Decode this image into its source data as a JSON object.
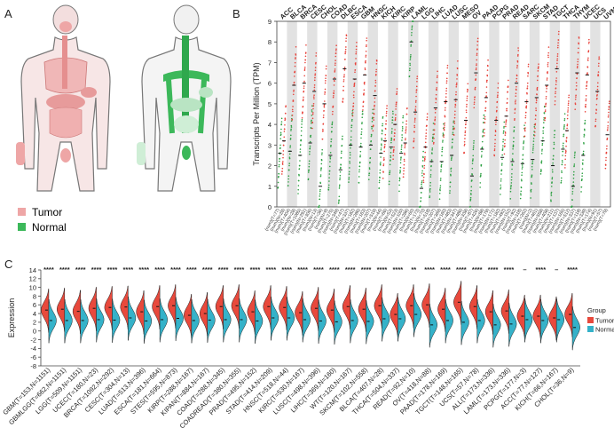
{
  "figure": {
    "panel_labels": [
      "A",
      "B",
      "C"
    ],
    "colors": {
      "tumor": "#e8493c",
      "normal": "#35b2c9",
      "b_tumor": "#e8423a",
      "b_normal": "#2ea043",
      "b_band": "#e2e2e2",
      "body_outline": "#777777",
      "tumor_organs": "#eea6a6",
      "normal_organs": "#3cb85a",
      "sig_black": "#111111",
      "label_black": "#111111"
    }
  },
  "panel_a": {
    "legend": [
      {
        "label": "Tumor",
        "color": "#eea6a6"
      },
      {
        "label": "Normal",
        "color": "#3cb85a"
      }
    ]
  },
  "chart_data": [
    {
      "panel": "B",
      "type": "scatter",
      "ylabel": "Transcripts Per Million (TPM)",
      "ylim": [
        0,
        9
      ],
      "yticks": [
        0,
        1,
        2,
        3,
        4,
        5,
        6,
        7,
        8,
        9
      ],
      "categories": [
        {
          "name": "ACC",
          "color": "red"
        },
        {
          "name": "BLCA",
          "color": "red"
        },
        {
          "name": "BRCA",
          "color": "red"
        },
        {
          "name": "CESC",
          "color": "red"
        },
        {
          "name": "CHOL",
          "color": "black"
        },
        {
          "name": "COAD",
          "color": "red"
        },
        {
          "name": "DLBC",
          "color": "red"
        },
        {
          "name": "ESCA",
          "color": "red"
        },
        {
          "name": "GBM",
          "color": "red"
        },
        {
          "name": "HNSC",
          "color": "red"
        },
        {
          "name": "KICH",
          "color": "black"
        },
        {
          "name": "KIRC",
          "color": "black"
        },
        {
          "name": "KIRP",
          "color": "black"
        },
        {
          "name": "LAML",
          "color": "green"
        },
        {
          "name": "LGG",
          "color": "black"
        },
        {
          "name": "LIHC",
          "color": "red"
        },
        {
          "name": "LUAD",
          "color": "red"
        },
        {
          "name": "LUSC",
          "color": "red"
        },
        {
          "name": "MESO",
          "color": "black"
        },
        {
          "name": "OV",
          "color": "red"
        },
        {
          "name": "PAAD",
          "color": "red"
        },
        {
          "name": "PCPG",
          "color": "black"
        },
        {
          "name": "PRAD",
          "color": "red"
        },
        {
          "name": "READ",
          "color": "red"
        },
        {
          "name": "SARC",
          "color": "black"
        },
        {
          "name": "SKCM",
          "color": "red"
        },
        {
          "name": "STAD",
          "color": "red"
        },
        {
          "name": "TGCT",
          "color": "red"
        },
        {
          "name": "THCA",
          "color": "black"
        },
        {
          "name": "THYM",
          "color": "red"
        },
        {
          "name": "UCEC",
          "color": "red"
        },
        {
          "name": "UCS",
          "color": "red"
        },
        {
          "name": "UVM",
          "color": "black"
        }
      ],
      "tumor_median": [
        3.2,
        5.9,
        6.0,
        5.6,
        5.0,
        6.2,
        6.7,
        6.2,
        6.4,
        5.4,
        3.2,
        4.0,
        3.1,
        4.6,
        2.9,
        4.8,
        5.1,
        5.2,
        4.2,
        6.5,
        5.3,
        4.2,
        4.4,
        6.0,
        5.1,
        5.3,
        5.9,
        6.7,
        3.7,
        6.5,
        6.4,
        5.6,
        3.5
      ],
      "normal_median": [
        2.6,
        2.7,
        2.5,
        3.1,
        1.0,
        2.5,
        1.8,
        3.0,
        2.9,
        3.0,
        2.6,
        2.9,
        2.6,
        8.0,
        0.9,
        2.2,
        2.2,
        2.5,
        2.6,
        1.5,
        2.8,
        2.4,
        2.4,
        2.2,
        2.1,
        2.3,
        3.2,
        2.0,
        2.8,
        1.0,
        2.5,
        2.5,
        0.0
      ],
      "normal_present": [
        true,
        true,
        true,
        true,
        true,
        true,
        true,
        true,
        true,
        true,
        true,
        true,
        true,
        true,
        true,
        true,
        true,
        true,
        false,
        true,
        true,
        false,
        true,
        true,
        true,
        true,
        true,
        true,
        true,
        true,
        true,
        false,
        false
      ],
      "xticklabels": [
        "(num)(T=77)",
        "(num)(N=28)",
        "(num)(T=404)",
        "(num)(N=28)",
        "(num)(T=1085)",
        "(num)(N=291)",
        "(num)(T=306)",
        "(num)(N=13)",
        "(num)(T=36)",
        "(num)(N=9)",
        "(num)(T=275)",
        "(num)(N=349)",
        "(num)(T=47)",
        "(num)(N=337)",
        "(num)(T=182)",
        "(num)(N=286)",
        "(num)(T=163)",
        "(num)(N=207)",
        "(num)(T=519)",
        "(num)(N=44)",
        "(num)(T=66)",
        "(num)(N=53)",
        "(num)(T=523)",
        "(num)(N=100)",
        "(num)(T=286)",
        "(num)(N=60)",
        "(num)(T=173)",
        "(num)(N=70)",
        "(num)(T=518)",
        "(num)(N=207)",
        "(num)(T=369)",
        "(num)(N=160)",
        "(num)(T=483)",
        "(num)(N=347)",
        "(num)(T=486)",
        "(num)(N=338)",
        "(num)(T=87)",
        "(num)(T=426)",
        "(num)(N=88)",
        "(num)(T=179)",
        "(num)(N=171)",
        "(num)(T=182)",
        "(num)(T=492)",
        "(num)(N=152)",
        "(num)(T=92)",
        "(num)(N=318)",
        "(num)(T=262)",
        "(num)(N=2)",
        "(num)(T=461)",
        "(num)(N=558)",
        "(num)(T=408)",
        "(num)(N=211)",
        "(num)(T=137)",
        "(num)(N=165)",
        "(num)(T=512)",
        "(num)(N=337)",
        "(num)(T=118)",
        "(num)(N=339)",
        "(num)(T=174)",
        "(num)(N=91)",
        "(num)(T=57)",
        "(num)(T=79)"
      ]
    },
    {
      "panel": "C",
      "type": "violin",
      "ylabel": "Expression",
      "ylim": [
        -8,
        14
      ],
      "yticks": [
        -8,
        -6,
        -4,
        -2,
        0,
        2,
        4,
        6,
        8,
        10,
        12,
        14
      ],
      "legend": {
        "title": "Group",
        "entries": [
          "Tumor",
          "Normal"
        ]
      },
      "groups": [
        {
          "label": "GBM(T=153,N=1151)",
          "tumor": 4.8,
          "normal": 2.4,
          "sig": "****"
        },
        {
          "label": "GBMLGG(T=662,N=1151)",
          "tumor": 5.0,
          "normal": 2.4,
          "sig": "****"
        },
        {
          "label": "LGG(T=509,N=1151)",
          "tumor": 4.5,
          "normal": 2.4,
          "sig": "****"
        },
        {
          "label": "UCEC(T=180,N=23)",
          "tumor": 5.2,
          "normal": 2.6,
          "sig": "****"
        },
        {
          "label": "BRCA(T=1092,N=292)",
          "tumor": 5.4,
          "normal": 2.5,
          "sig": "****"
        },
        {
          "label": "CESC(T=304,N=13)",
          "tumor": 5.5,
          "normal": 3.0,
          "sig": "****"
        },
        {
          "label": "LUAD(T=513,N=396)",
          "tumor": 4.4,
          "normal": 2.3,
          "sig": "****"
        },
        {
          "label": "ESCA(T=181,N=664)",
          "tumor": 5.6,
          "normal": 2.6,
          "sig": "****"
        },
        {
          "label": "STES(T=595,N=873)",
          "tumor": 5.8,
          "normal": 2.9,
          "sig": "****"
        },
        {
          "label": "KIRP(T=288,N=167)",
          "tumor": 3.6,
          "normal": 2.4,
          "sig": "****"
        },
        {
          "label": "KIPAN(T=884,N=167)",
          "tumor": 4.0,
          "normal": 2.5,
          "sig": "****"
        },
        {
          "label": "COAD(T=288,N=345)",
          "tumor": 5.6,
          "normal": 2.6,
          "sig": "****"
        },
        {
          "label": "COADREAD(T=380,N=355)",
          "tumor": 5.8,
          "normal": 2.6,
          "sig": "****"
        },
        {
          "label": "PRAD(T=495,N=152)",
          "tumor": 4.4,
          "normal": 2.3,
          "sig": "****"
        },
        {
          "label": "STAD(T=414,N=209)",
          "tumor": 5.6,
          "normal": 3.0,
          "sig": "****"
        },
        {
          "label": "HNSC(T=518,N=44)",
          "tumor": 5.4,
          "normal": 3.0,
          "sig": "****"
        },
        {
          "label": "KIRC(T=530,N=167)",
          "tumor": 4.2,
          "normal": 2.6,
          "sig": "****"
        },
        {
          "label": "LUSC(T=498,N=396)",
          "tumor": 5.2,
          "normal": 2.3,
          "sig": "****"
        },
        {
          "label": "LIHC(T=369,N=160)",
          "tumor": 4.8,
          "normal": 2.1,
          "sig": "****"
        },
        {
          "label": "WT(T=120,N=167)",
          "tumor": 5.6,
          "normal": 2.4,
          "sig": "****"
        },
        {
          "label": "SKCM(T=102,N=558)",
          "tumor": 5.0,
          "normal": 2.2,
          "sig": "****"
        },
        {
          "label": "BLCA(T=407,N=28)",
          "tumor": 5.8,
          "normal": 2.8,
          "sig": "****"
        },
        {
          "label": "THCA(T=504,N=337)",
          "tumor": 3.8,
          "normal": 2.8,
          "sig": "****"
        },
        {
          "label": "READ(T=92,N=10)",
          "tumor": 5.8,
          "normal": 3.8,
          "sig": "**"
        },
        {
          "label": "OV(T=418,N=88)",
          "tumor": 6.0,
          "normal": 1.4,
          "sig": "****"
        },
        {
          "label": "PAAD(T=178,N=169)",
          "tumor": 5.0,
          "normal": 2.4,
          "sig": "****"
        },
        {
          "label": "TGCT(T=148,N=165)",
          "tumor": 6.6,
          "normal": 2.0,
          "sig": "****"
        },
        {
          "label": "UCS(T=57,N=78)",
          "tumor": 5.6,
          "normal": 2.4,
          "sig": "****"
        },
        {
          "label": "ALL(T=173,N=336)",
          "tumor": 4.4,
          "normal": 1.4,
          "sig": "****"
        },
        {
          "label": "LAML(T=173,N=336)",
          "tumor": 4.6,
          "normal": 1.6,
          "sig": "****"
        },
        {
          "label": "PCPG(T=177,N=3)",
          "tumor": 3.4,
          "normal": 2.6,
          "sig": "–"
        },
        {
          "label": "ACC(T=77,N=127)",
          "tumor": 3.4,
          "normal": 2.4,
          "sig": "****"
        },
        {
          "label": "KICH(T=66,N=167)",
          "tumor": 3.0,
          "normal": 2.6,
          "sig": "–"
        },
        {
          "label": "CHOL(T=36,N=9)",
          "tumor": 3.8,
          "normal": 0.8,
          "sig": "****"
        }
      ]
    }
  ]
}
